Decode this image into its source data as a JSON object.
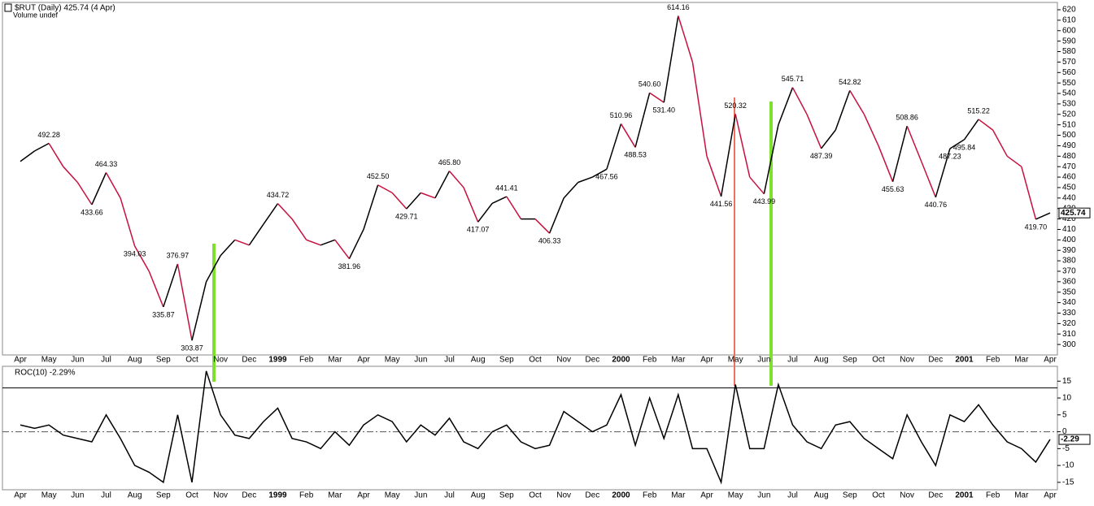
{
  "chart_data": [
    {
      "type": "line",
      "title": "$RUT (Daily) 425.74 (4 Apr)",
      "subtitle": "Volume undef",
      "categories": [
        "Apr",
        null,
        "May",
        null,
        "Jun",
        null,
        "Jul",
        null,
        "Aug",
        null,
        "Sep",
        null,
        "Oct",
        null,
        "Nov",
        null,
        "Dec",
        null,
        "1999",
        null,
        "Feb",
        null,
        "Mar",
        null,
        "Apr",
        null,
        "May",
        null,
        "Jun",
        null,
        "Jul",
        null,
        "Aug",
        null,
        "Sep",
        null,
        "Oct",
        null,
        "Nov",
        null,
        "Dec",
        null,
        "2000",
        null,
        "Feb",
        null,
        "Mar",
        null,
        "Apr",
        null,
        "May",
        null,
        "Jun",
        null,
        "Jul",
        null,
        "Aug",
        null,
        "Sep",
        null,
        "Oct",
        null,
        "Nov",
        null,
        "Dec",
        null,
        "2001",
        null,
        "Feb",
        null,
        "Mar",
        null,
        "Apr"
      ],
      "values": [
        475,
        485,
        492.28,
        470,
        455,
        433.66,
        464.33,
        440,
        394.03,
        370,
        335.87,
        376.97,
        303.87,
        360,
        385,
        400,
        395,
        415,
        434.72,
        420,
        400,
        395,
        400,
        381.96,
        410,
        452.5,
        445,
        429.71,
        445,
        440,
        465.8,
        450,
        417.07,
        435,
        441.41,
        420,
        420,
        406.33,
        440,
        455,
        460,
        467.56,
        510.96,
        488.53,
        540.6,
        531.4,
        614.16,
        570,
        480,
        441.56,
        520.32,
        460,
        443.99,
        510,
        545.71,
        520,
        487.39,
        505,
        542.82,
        520,
        490,
        455.63,
        508.86,
        475,
        440.76,
        487.23,
        495.84,
        515.22,
        505,
        480,
        470,
        419.7,
        425.74
      ],
      "value_labels": [
        null,
        null,
        "492.28",
        null,
        null,
        "433.66",
        "464.33",
        null,
        "394.03",
        null,
        "335.87",
        "376.97",
        "303.87",
        null,
        null,
        null,
        null,
        null,
        "434.72",
        null,
        null,
        null,
        null,
        "381.96",
        null,
        "452.50",
        null,
        "429.71",
        null,
        null,
        "465.80",
        null,
        "417.07",
        null,
        "441.41",
        null,
        null,
        "406.33",
        null,
        null,
        null,
        "467.56",
        "510.96",
        "488.53",
        "540.60",
        "531.40",
        "614.16",
        null,
        null,
        "441.56",
        "520.32",
        null,
        "443.99",
        null,
        "545.71",
        null,
        "487.39",
        null,
        "542.82",
        null,
        null,
        "455.63",
        "508.86",
        null,
        "440.76",
        "487.23",
        "495.84",
        "515.22",
        null,
        null,
        null,
        "419.70",
        null
      ],
      "last_label": "425.74",
      "up_color": "#000000",
      "down_color": "#c8103e",
      "ylim": [
        290,
        627
      ],
      "yticks": [
        300,
        310,
        320,
        330,
        340,
        350,
        360,
        370,
        380,
        390,
        400,
        410,
        420,
        430,
        440,
        450,
        460,
        470,
        480,
        490,
        500,
        510,
        520,
        530,
        540,
        550,
        560,
        570,
        580,
        590,
        600,
        610,
        620
      ]
    },
    {
      "type": "line",
      "title": "ROC(10) -2.29%",
      "categories": [
        "Apr",
        null,
        "May",
        null,
        "Jun",
        null,
        "Jul",
        null,
        "Aug",
        null,
        "Sep",
        null,
        "Oct",
        null,
        "Nov",
        null,
        "Dec",
        null,
        "1999",
        null,
        "Feb",
        null,
        "Mar",
        null,
        "Apr",
        null,
        "May",
        null,
        "Jun",
        null,
        "Jul",
        null,
        "Aug",
        null,
        "Sep",
        null,
        "Oct",
        null,
        "Nov",
        null,
        "Dec",
        null,
        "2000",
        null,
        "Feb",
        null,
        "Mar",
        null,
        "Apr",
        null,
        "May",
        null,
        "Jun",
        null,
        "Jul",
        null,
        "Aug",
        null,
        "Sep",
        null,
        "Oct",
        null,
        "Nov",
        null,
        "Dec",
        null,
        "2001",
        null,
        "Feb",
        null,
        "Mar",
        null,
        "Apr"
      ],
      "values": [
        2,
        1,
        2,
        -1,
        -2,
        -3,
        5,
        -2,
        -10,
        -12,
        -15,
        5,
        -15,
        18,
        5,
        -1,
        -2,
        3,
        7,
        -2,
        -3,
        -5,
        0,
        -4,
        2,
        5,
        3,
        -3,
        2,
        -1,
        4,
        -3,
        -5,
        0,
        2,
        -3,
        -5,
        -4,
        6,
        3,
        0,
        2,
        11,
        -4,
        10,
        -2,
        11,
        -5,
        -5,
        -15,
        14,
        -5,
        -5,
        14,
        2,
        -3,
        -5,
        2,
        3,
        -2,
        -5,
        -8,
        5,
        -3,
        -10,
        5,
        3,
        8,
        2,
        -3,
        -5,
        -9,
        -2.29
      ],
      "last_label": "-2.29",
      "color": "#000000",
      "threshold": 13,
      "ylim": [
        -17.2,
        19.4
      ],
      "yticks": [
        -15,
        -10,
        -5,
        0,
        5,
        10,
        15
      ]
    }
  ]
}
